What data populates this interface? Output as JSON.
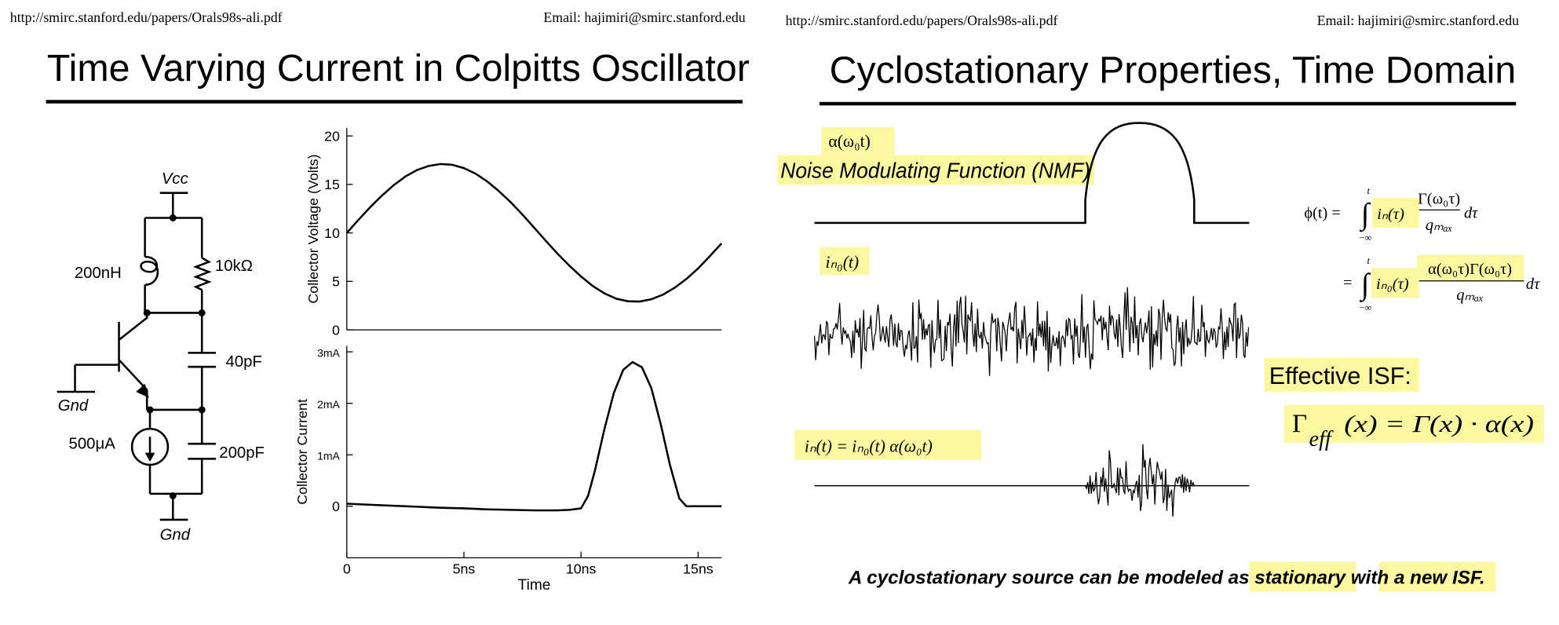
{
  "left_slide": {
    "header": {
      "url": "http://smirc.stanford.edu/papers/Orals98s-ali.pdf",
      "email": "Email: hajimiri@smirc.stanford.edu"
    },
    "title": "Time Varying Current in Colpitts Oscillator",
    "circuit": {
      "vcc": "Vcc",
      "inductor": "200nH",
      "resistor": "10kΩ",
      "cap1": "40pF",
      "source": "500μA",
      "cap2": "200pF",
      "gnd_base": "Gnd",
      "gnd_bottom": "Gnd"
    }
  },
  "chart_data": [
    {
      "type": "line",
      "y_label": "Collector Voltage (Volts)",
      "x": [
        0,
        0.5,
        1,
        1.5,
        2,
        2.5,
        3,
        3.5,
        4,
        4.5,
        5,
        5.5,
        6,
        6.5,
        7,
        7.5,
        8,
        8.5,
        9,
        9.5,
        10,
        10.5,
        11,
        11.5,
        12,
        12.5,
        13,
        13.5,
        14,
        14.5,
        15,
        15.5,
        16
      ],
      "values": [
        10,
        11.35,
        12.65,
        13.86,
        14.92,
        15.81,
        16.48,
        16.91,
        17.1,
        17.02,
        16.68,
        16.1,
        15.3,
        14.3,
        13.15,
        11.89,
        10.54,
        9.18,
        7.86,
        6.62,
        5.5,
        4.53,
        3.76,
        3.22,
        2.95,
        2.92,
        3.15,
        3.63,
        4.34,
        5.25,
        6.34,
        7.6,
        8.92
      ],
      "color": "#000000",
      "xlim": [
        0,
        16
      ],
      "ylim": [
        0,
        20
      ],
      "yticks": [
        0,
        5,
        10,
        15,
        20
      ]
    },
    {
      "type": "line",
      "y_label": "Collector Current",
      "x_label": "Time",
      "x": [
        0,
        1,
        2,
        3,
        4,
        5,
        6,
        7,
        8,
        9,
        9.5,
        10,
        10.3,
        10.6,
        11,
        11.4,
        11.8,
        12.2,
        12.6,
        13,
        13.4,
        13.8,
        14.2,
        14.5,
        15,
        16
      ],
      "values": [
        0.05,
        0.03,
        0.01,
        -0.01,
        -0.03,
        -0.04,
        -0.06,
        -0.07,
        -0.08,
        -0.08,
        -0.07,
        -0.04,
        0.2,
        0.7,
        1.5,
        2.2,
        2.65,
        2.8,
        2.7,
        2.3,
        1.6,
        0.8,
        0.15,
        0,
        0,
        0
      ],
      "color": "#000000",
      "xlim": [
        0,
        16
      ],
      "ylim": [
        -1,
        3
      ],
      "xticks": [
        0,
        {
          "value": 5,
          "label": "5ns"
        },
        {
          "value": 10,
          "label": "10ns"
        },
        {
          "value": 15,
          "label": "15ns"
        }
      ],
      "yticks": [
        {
          "value": 3,
          "label": "3mA"
        },
        {
          "value": 2,
          "label": "2mA"
        },
        {
          "value": 1,
          "label": "1mA"
        },
        0
      ]
    }
  ],
  "right_slide": {
    "header": {
      "url": "http://smirc.stanford.edu/papers/Orals98s-ali.pdf",
      "email": "Email: hajimiri@smirc.stanford.edu"
    },
    "title": "Cyclostationary Properties, Time Domain",
    "nmf_label": "α(ω₀t)",
    "nmf_name": "Noise Modulating Function (NMF)",
    "noise_label": "iₙ₀(t)",
    "product_label": "iₙ(t) = iₙ₀(t) α(ω₀t)",
    "equation1": {
      "lhs": "ϕ(t) =",
      "integral": "∫",
      "upper": "t",
      "lower": "−∞",
      "source": "iₙ(τ)",
      "numerator": "Γ(ω₀τ)",
      "denominator": "qₘₐₓ",
      "differential": "dτ"
    },
    "equation2": {
      "lhs": "=",
      "integral": "∫",
      "upper": "t",
      "lower": "−∞",
      "source": "iₙ₀(τ)",
      "numerator": "α(ω₀τ)Γ(ω₀τ)",
      "denominator": "qₘₐₓ",
      "differential": "dτ"
    },
    "effective_heading": "Effective ISF:",
    "effective_equation": {
      "symbol": "Γ",
      "subscript": "eff",
      "rest": "(x) = Γ(x) · α(x)"
    },
    "caption": "A cyclostationary source can be modeled as stationary with a new ISF."
  }
}
